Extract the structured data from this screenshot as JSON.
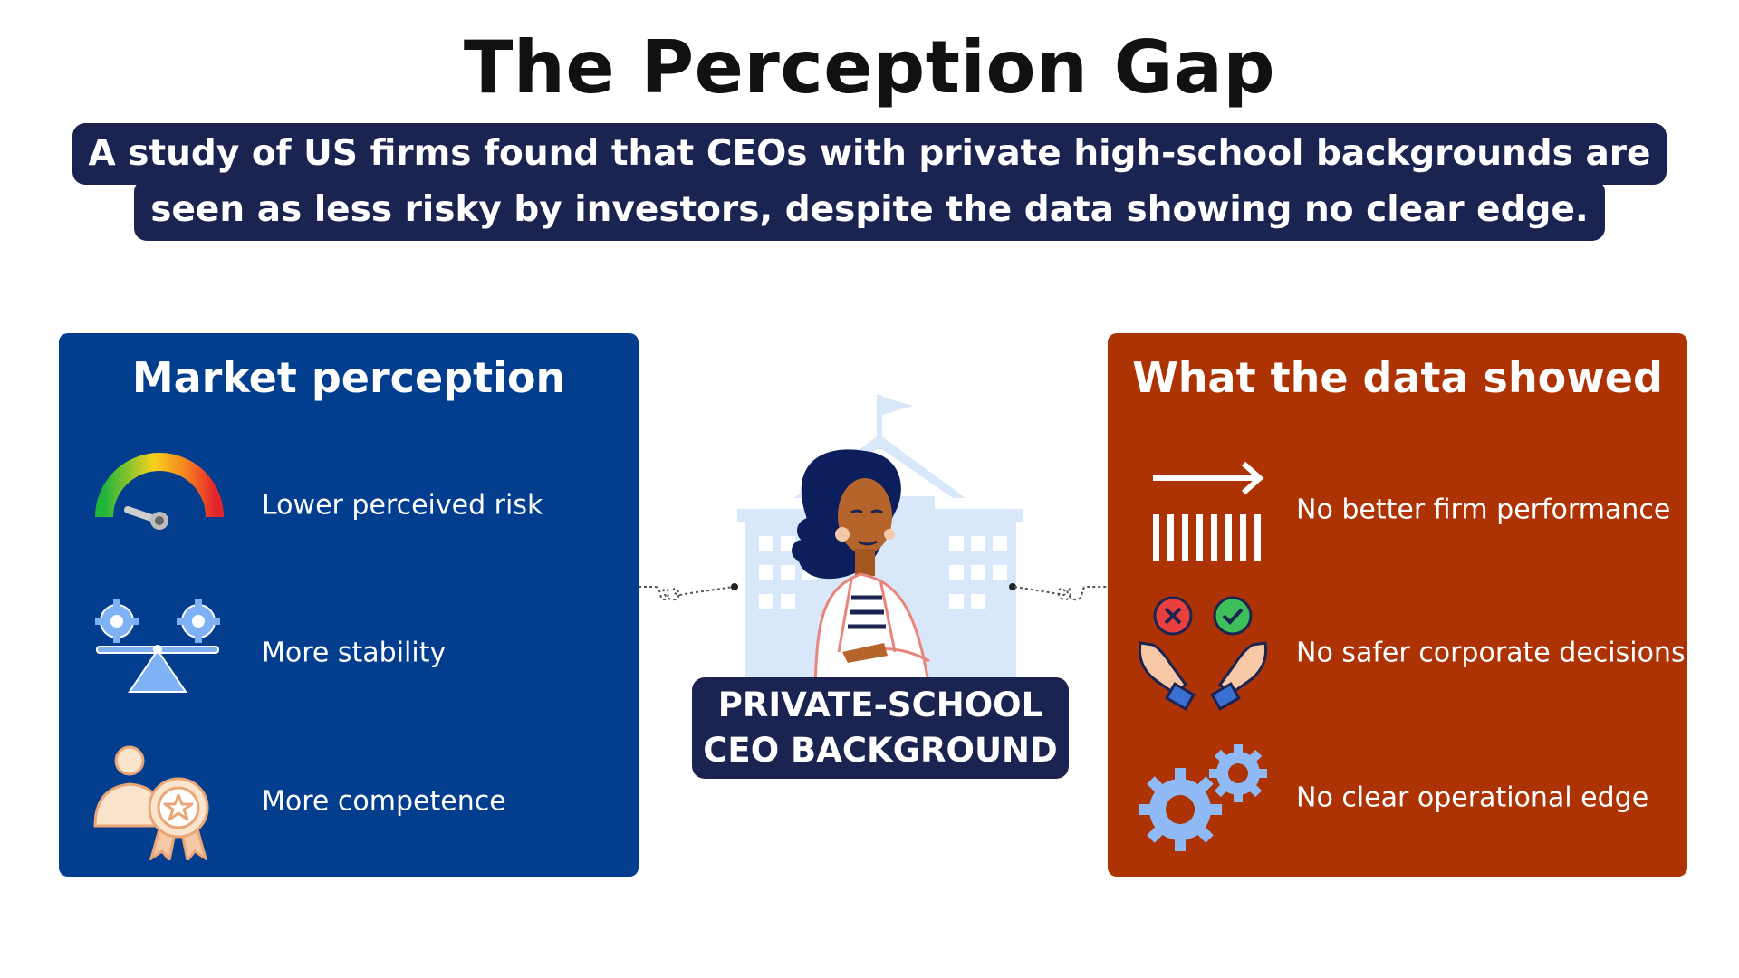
{
  "title": "The Perception Gap",
  "subtitle": {
    "line1": "A study of US firms found that CEOs with private high-school backgrounds are",
    "line2": "seen as less risky by investors, despite the data showing no clear edge."
  },
  "left_panel": {
    "title": "Market perception",
    "color": "#023d8e",
    "items": [
      {
        "label": "Lower perceived risk",
        "icon": "risk-gauge-icon"
      },
      {
        "label": "More stability",
        "icon": "balance-gears-icon"
      },
      {
        "label": "More competence",
        "icon": "person-award-icon"
      }
    ]
  },
  "right_panel": {
    "title": "What the data showed",
    "color": "#ad3304",
    "items": [
      {
        "label": "No better firm performance",
        "icon": "arrow-lines-icon"
      },
      {
        "label": "No safer corporate decisions",
        "icon": "hands-check-cross-icon"
      },
      {
        "label": "No clear operational edge",
        "icon": "gears-icon"
      }
    ]
  },
  "center": {
    "illustration": "woman-school-illustration",
    "badge_line1": "PRIVATE-SCHOOL",
    "badge_line2": "CEO BACKGROUND"
  }
}
